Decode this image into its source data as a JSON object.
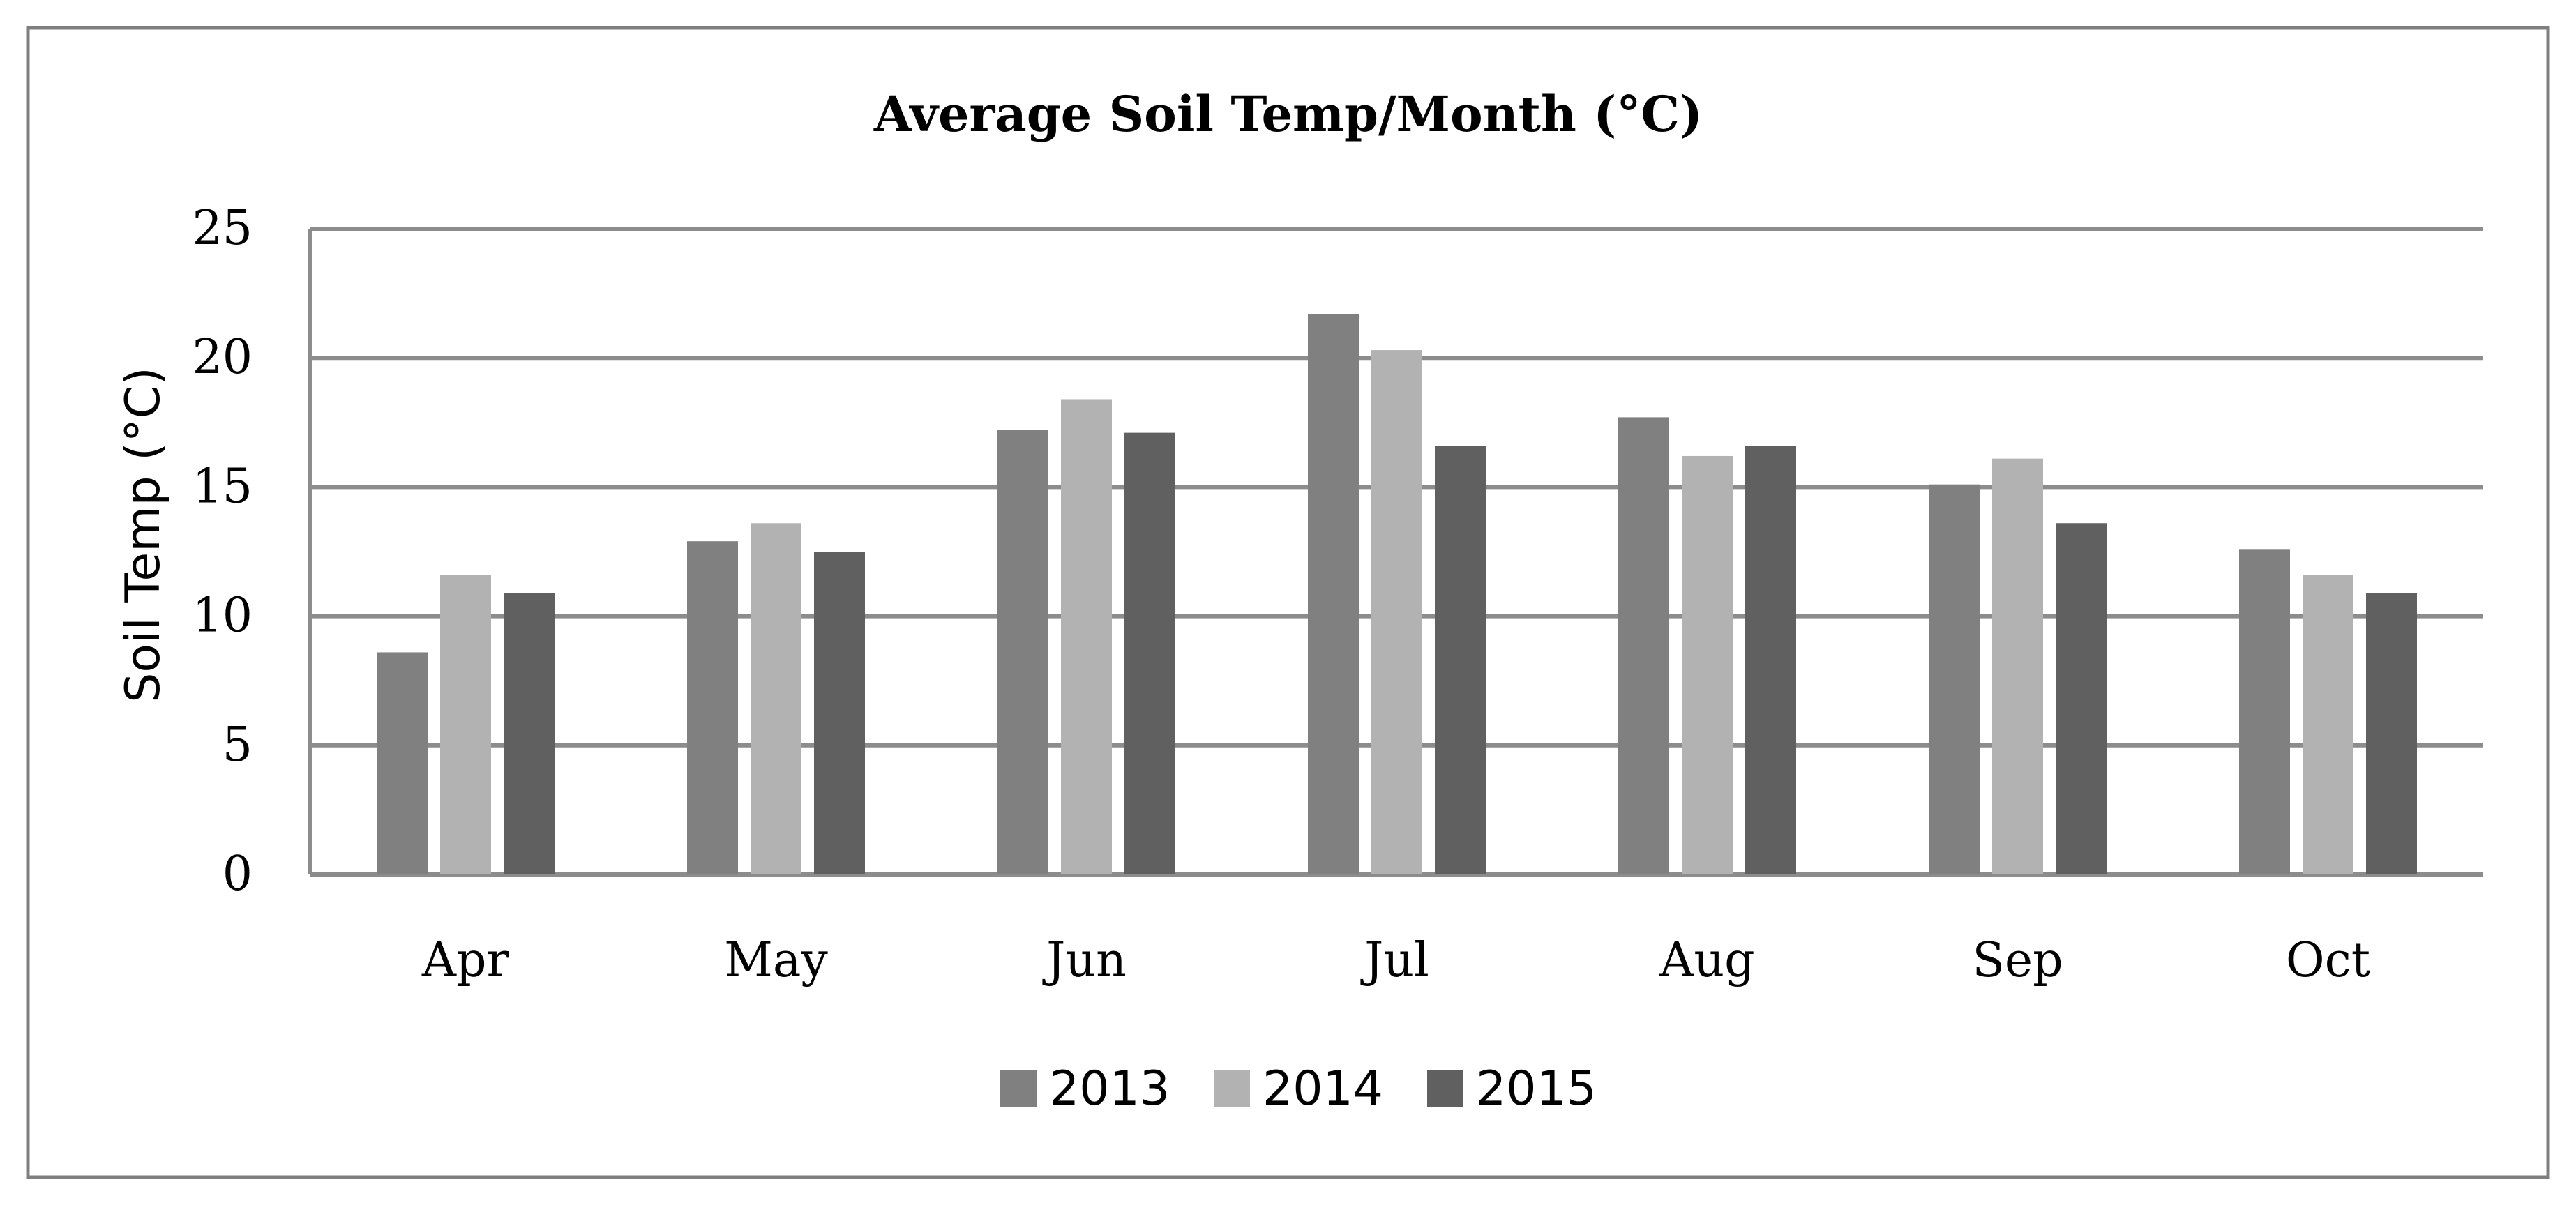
{
  "chart_data": {
    "type": "bar",
    "title": "Average Soil Temp/Month (°C)",
    "xlabel": "",
    "ylabel": "Soil Temp (°C)",
    "ylim": [
      0,
      25
    ],
    "yticks": [
      0,
      5,
      10,
      15,
      20,
      25
    ],
    "grid": true,
    "legend_position": "bottom",
    "categories": [
      "Apr",
      "May",
      "Jun",
      "Jul",
      "Aug",
      "Sep",
      "Oct"
    ],
    "series": [
      {
        "name": "2013",
        "color": "#808080",
        "values": [
          8.6,
          12.9,
          17.2,
          21.7,
          17.7,
          15.1,
          12.6
        ]
      },
      {
        "name": "2014",
        "color": "#b2b2b2",
        "values": [
          11.6,
          13.6,
          18.4,
          20.3,
          16.2,
          16.1,
          11.6
        ]
      },
      {
        "name": "2015",
        "color": "#606060",
        "values": [
          10.9,
          12.5,
          17.1,
          16.6,
          16.6,
          13.6,
          10.9
        ]
      }
    ]
  },
  "colors": {
    "gridline": "#8c8c8c",
    "frame_border": "#7f7f7f",
    "background": "#ffffff"
  }
}
